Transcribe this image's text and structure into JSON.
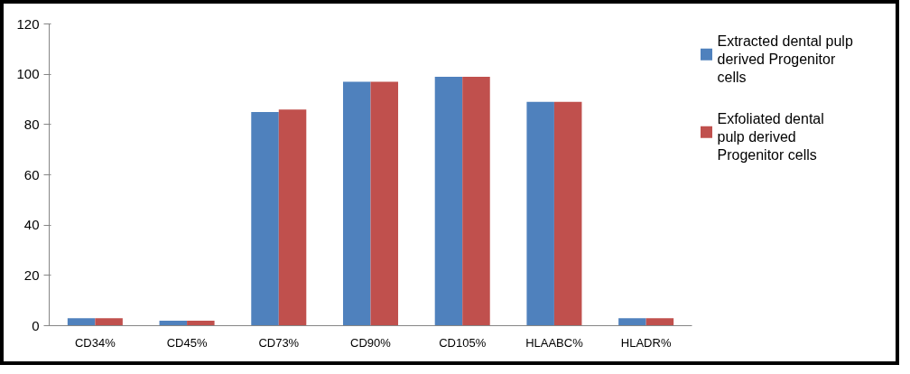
{
  "chart_data": {
    "type": "bar",
    "categories": [
      "CD34%",
      "CD45%",
      "CD73%",
      "CD90%",
      "CD105%",
      "HLAABC%",
      "HLADR%"
    ],
    "series": [
      {
        "name": "Extracted dental pulp derived  Progenitor cells",
        "color": "#4f81bd",
        "values": [
          3,
          2,
          85,
          97,
          99,
          89,
          3
        ]
      },
      {
        "name": "Exfoliated dental pulp derived Progenitor cells",
        "color": "#c0504d",
        "values": [
          3,
          2,
          86,
          97,
          99,
          89,
          3
        ]
      }
    ],
    "ylim": [
      0,
      120
    ],
    "yticks": [
      0,
      20,
      40,
      60,
      80,
      100,
      120
    ],
    "grid": false,
    "legend": "top right"
  }
}
